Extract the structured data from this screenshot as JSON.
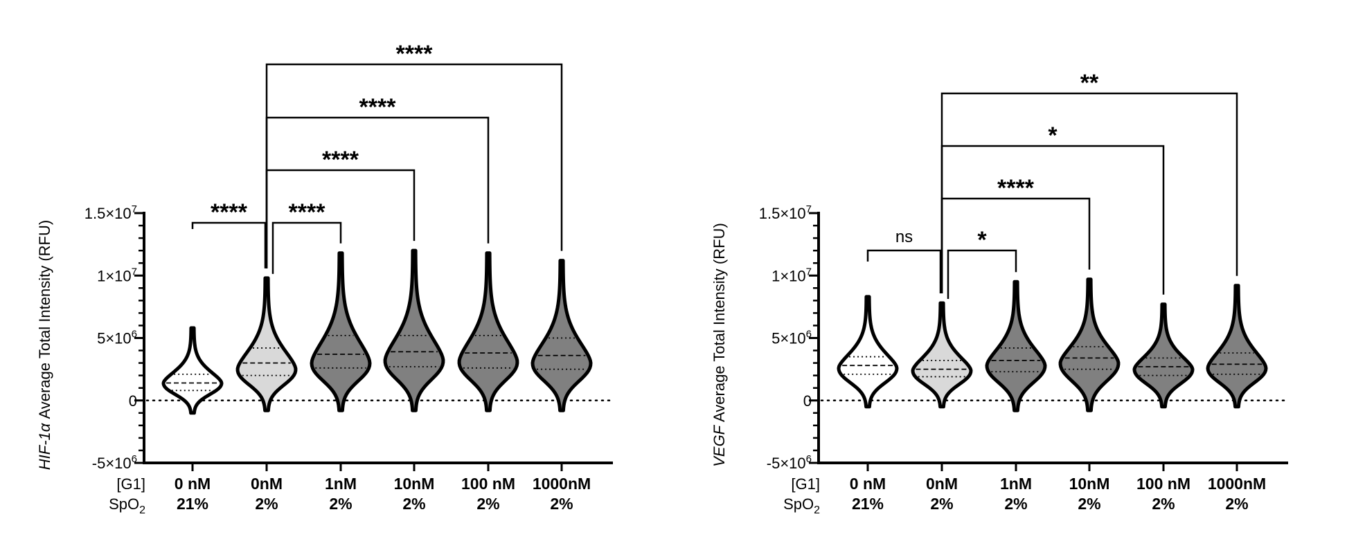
{
  "chart_data": [
    {
      "type": "violin",
      "ylabel_italic": "HIF-1α",
      "ylabel_rest": " Average Total Intensity (RFU)",
      "ylim": [
        -5000000,
        15000000
      ],
      "yticks": [
        {
          "value": 15000000,
          "label": "1.5×10",
          "exp": "7"
        },
        {
          "value": 10000000,
          "label": "1×10",
          "exp": "7"
        },
        {
          "value": 5000000,
          "label": "5×10",
          "exp": "6"
        },
        {
          "value": 0,
          "label": "0",
          "exp": ""
        },
        {
          "value": -5000000,
          "label": "-5×10",
          "exp": "6"
        }
      ],
      "row_labels": [
        "[G1]",
        "SpO2"
      ],
      "groups": [
        {
          "conc": "0 nM",
          "spo2": "21%",
          "fill": "#ffffff",
          "min": -1000000,
          "max": 5800000,
          "q1": 800000,
          "median": 1400000,
          "q3": 2100000,
          "mode": 1400000
        },
        {
          "conc": "0nM",
          "spo2": "2%",
          "fill": "#d9d9d9",
          "min": -800000,
          "max": 9800000,
          "q1": 2000000,
          "median": 3000000,
          "q3": 4200000,
          "mode": 2500000
        },
        {
          "conc": "1nM",
          "spo2": "2%",
          "fill": "#808080",
          "min": -800000,
          "max": 11800000,
          "q1": 2600000,
          "median": 3700000,
          "q3": 5200000,
          "mode": 3000000
        },
        {
          "conc": "10nM",
          "spo2": "2%",
          "fill": "#808080",
          "min": -800000,
          "max": 12000000,
          "q1": 2700000,
          "median": 3900000,
          "q3": 5200000,
          "mode": 3200000
        },
        {
          "conc": "100 nM",
          "spo2": "2%",
          "fill": "#808080",
          "min": -800000,
          "max": 11800000,
          "q1": 2600000,
          "median": 3800000,
          "q3": 5200000,
          "mode": 3100000
        },
        {
          "conc": "1000nM",
          "spo2": "2%",
          "fill": "#808080",
          "min": -800000,
          "max": 11200000,
          "q1": 2500000,
          "median": 3600000,
          "q3": 5000000,
          "mode": 3000000
        }
      ],
      "comparisons": [
        {
          "from": 0,
          "to": 1,
          "label": "****"
        },
        {
          "from": 1,
          "to": 2,
          "label": "****"
        },
        {
          "from": 1,
          "to": 3,
          "label": "****"
        },
        {
          "from": 1,
          "to": 4,
          "label": "****"
        },
        {
          "from": 1,
          "to": 5,
          "label": "****"
        }
      ]
    },
    {
      "type": "violin",
      "ylabel_italic": "VEGF",
      "ylabel_rest": " Average Total Intensity  (RFU)",
      "ylim": [
        -5000000,
        15000000
      ],
      "yticks": [
        {
          "value": 15000000,
          "label": "1.5×10",
          "exp": "7"
        },
        {
          "value": 10000000,
          "label": "1×10",
          "exp": "7"
        },
        {
          "value": 5000000,
          "label": "5×10",
          "exp": "6"
        },
        {
          "value": 0,
          "label": "0",
          "exp": ""
        },
        {
          "value": -5000000,
          "label": "-5×10",
          "exp": "6"
        }
      ],
      "row_labels": [
        "[G1]",
        "SpO2"
      ],
      "groups": [
        {
          "conc": "0 nM",
          "spo2": "21%",
          "fill": "#ffffff",
          "min": -500000,
          "max": 8300000,
          "q1": 2100000,
          "median": 2800000,
          "q3": 3500000,
          "mode": 2600000
        },
        {
          "conc": "0nM",
          "spo2": "2%",
          "fill": "#d9d9d9",
          "min": -500000,
          "max": 7800000,
          "q1": 1900000,
          "median": 2500000,
          "q3": 3200000,
          "mode": 2400000
        },
        {
          "conc": "1nM",
          "spo2": "2%",
          "fill": "#808080",
          "min": -800000,
          "max": 9500000,
          "q1": 2300000,
          "median": 3200000,
          "q3": 4200000,
          "mode": 2800000
        },
        {
          "conc": "10nM",
          "spo2": "2%",
          "fill": "#808080",
          "min": -800000,
          "max": 9700000,
          "q1": 2500000,
          "median": 3400000,
          "q3": 4300000,
          "mode": 3000000
        },
        {
          "conc": "100 nM",
          "spo2": "2%",
          "fill": "#808080",
          "min": -500000,
          "max": 7700000,
          "q1": 2000000,
          "median": 2700000,
          "q3": 3400000,
          "mode": 2500000
        },
        {
          "conc": "1000nM",
          "spo2": "2%",
          "fill": "#808080",
          "min": -500000,
          "max": 9200000,
          "q1": 2100000,
          "median": 2900000,
          "q3": 3800000,
          "mode": 2600000
        }
      ],
      "comparisons": [
        {
          "from": 0,
          "to": 1,
          "label": "ns"
        },
        {
          "from": 1,
          "to": 2,
          "label": "*"
        },
        {
          "from": 1,
          "to": 3,
          "label": "****"
        },
        {
          "from": 1,
          "to": 4,
          "label": "*"
        },
        {
          "from": 1,
          "to": 5,
          "label": "**"
        }
      ]
    }
  ]
}
